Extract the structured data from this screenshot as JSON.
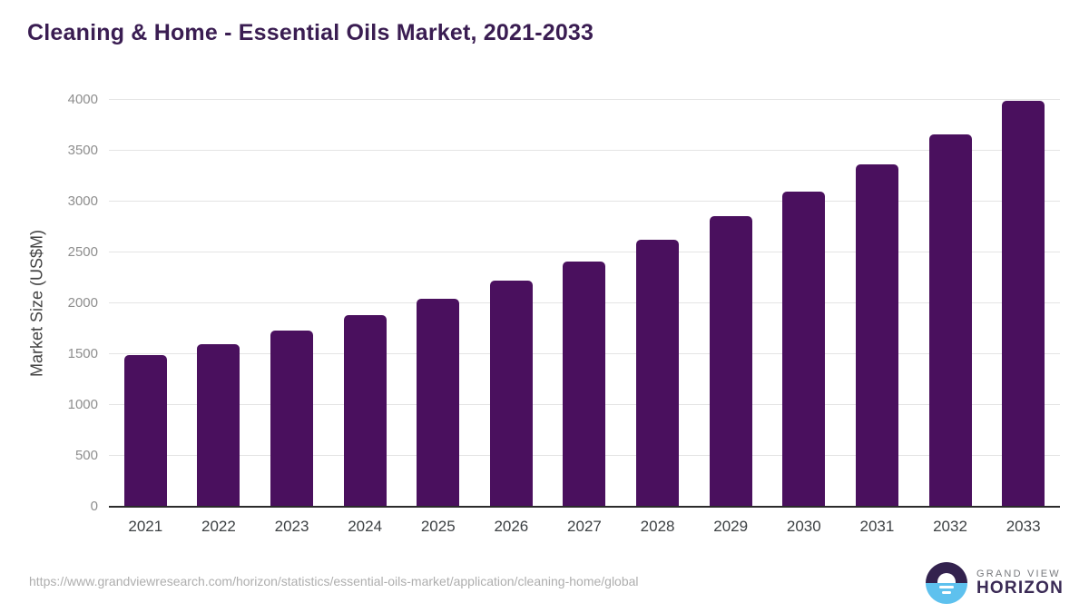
{
  "title": "Cleaning & Home - Essential Oils Market, 2021-2033",
  "title_color": "#3a1d52",
  "chart_data": {
    "type": "bar",
    "title": "Cleaning & Home - Essential Oils Market, 2021-2033",
    "categories": [
      "2021",
      "2022",
      "2023",
      "2024",
      "2025",
      "2026",
      "2027",
      "2028",
      "2029",
      "2030",
      "2031",
      "2032",
      "2033"
    ],
    "values": [
      1490,
      1600,
      1730,
      1880,
      2045,
      2220,
      2415,
      2625,
      2855,
      3095,
      3370,
      3665,
      3990
    ],
    "xlabel": "",
    "ylabel": "Market Size (US$M)",
    "ylim": [
      0,
      4000
    ],
    "yticks": [
      0,
      500,
      1000,
      1500,
      2000,
      2500,
      3000,
      3500,
      4000
    ],
    "grid": true,
    "legend_position": "none",
    "bar_color": "#4a105e",
    "gridline_color": "#e4e4e4",
    "axis_line_color": "#2b2b2b"
  },
  "footer": {
    "source_url": "https://www.grandviewresearch.com/horizon/statistics/essential-oils-market/application/cleaning-home/global",
    "logo": {
      "top_text": "GRAND VIEW",
      "bottom_text": "HORIZON",
      "mark_top_color": "#33224e",
      "mark_bottom_color": "#5ec1ee"
    }
  }
}
